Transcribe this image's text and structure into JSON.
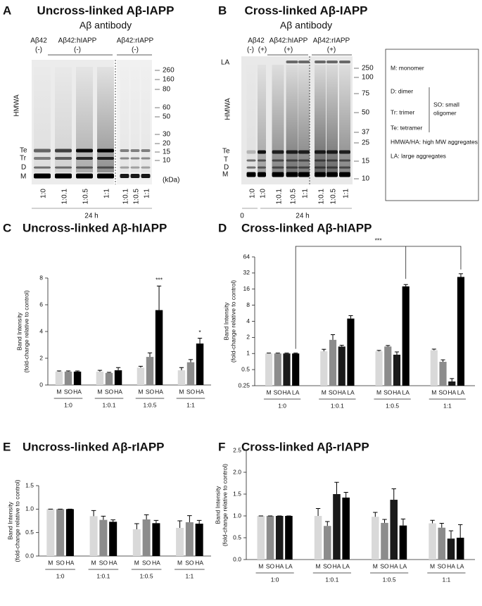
{
  "panel_a": {
    "letter": "A",
    "title": "Uncross-linked Aβ-IAPP",
    "subtitle": "Aβ antibody",
    "group_names": [
      "Aβ42",
      "Aβ42:hIAPP",
      "Aβ42:rIAPP"
    ],
    "treatments": [
      "(-)",
      "(-)",
      "(-)"
    ],
    "band_labels": [
      "HMWA",
      "Te",
      "Tr",
      "D",
      "M"
    ],
    "markers": [
      260,
      160,
      80,
      60,
      50,
      30,
      20,
      15,
      10
    ],
    "marker_unit": "(kDa)",
    "lanes": [
      "1:0",
      "1:0.1",
      "1:0.5",
      "1:1",
      "1:0.1",
      "1:0.5",
      "1:1"
    ],
    "times": [
      "24 h"
    ]
  },
  "panel_b": {
    "letter": "B",
    "title": "Cross-linked Aβ-IAPP",
    "subtitle": "Aβ antibody",
    "group_names": [
      "Aβ42",
      "Aβ42:hIAPP",
      "Aβ42:rIAPP"
    ],
    "treatments": [
      "(-)",
      "(+)",
      "(+)",
      "(+)"
    ],
    "band_labels": [
      "LA",
      "HMWA",
      "Te",
      "T",
      "D",
      "M"
    ],
    "markers": [
      250,
      100,
      75,
      50,
      37,
      25,
      15,
      10
    ],
    "lanes": [
      "1:0",
      "1:0",
      "1:0.1",
      "1:0.5",
      "1:1",
      "1:0.1",
      "1:0.5",
      "1:1"
    ],
    "times": [
      "0",
      "24 h"
    ]
  },
  "legend_box": {
    "items": [
      "M: monomer",
      "D: dimer",
      "Tr: trimer",
      "Te: tetramer",
      "HMWA/HA: high MW aggregates",
      "LA: large aggregates"
    ],
    "bracket_label": [
      "SO: small",
      "oligomer"
    ]
  },
  "chart_data": [
    {
      "type": "bar",
      "letter": "C",
      "title": "Uncross-linked Aβ-hIAPP",
      "ylabel": [
        "Band Intensity",
        "(fold-change relative to control)"
      ],
      "categories": [
        "1:0",
        "1:0.1",
        "1:0.5",
        "1:1"
      ],
      "series": [
        {
          "name": "M",
          "color": "#d9d9d9",
          "values": [
            1,
            1.0,
            1.3,
            1.1
          ],
          "errors": [
            0.05,
            0.1,
            0.1,
            0.2
          ]
        },
        {
          "name": "SO",
          "color": "#8c8c8c",
          "values": [
            1,
            0.9,
            2.1,
            1.7
          ],
          "errors": [
            0.05,
            0.05,
            0.3,
            0.2
          ]
        },
        {
          "name": "HA",
          "color": "#000000",
          "values": [
            1,
            1.1,
            5.6,
            3.1
          ],
          "errors": [
            0.05,
            0.2,
            1.8,
            0.4
          ]
        }
      ],
      "ylim": [
        0,
        8
      ],
      "yticks": [
        0,
        2,
        4,
        6,
        8
      ],
      "annotations": [
        "***",
        "*"
      ]
    },
    {
      "type": "bar",
      "letter": "D",
      "title": "Cross-linked Aβ-hIAPP",
      "ylabel": [
        "Band Intensity",
        "(fold-change relative to control)"
      ],
      "categories": [
        "1:0",
        "1:0.1",
        "1:0.5",
        "1:1"
      ],
      "series": [
        {
          "name": "M",
          "color": "#d9d9d9",
          "values": [
            1,
            1.1,
            1.1,
            1.15
          ],
          "errors": [
            0.02,
            0.1,
            0.04,
            0.06
          ]
        },
        {
          "name": "SO",
          "color": "#8c8c8c",
          "values": [
            1,
            1.8,
            1.35,
            0.7
          ],
          "errors": [
            0.02,
            0.45,
            0.06,
            0.06
          ]
        },
        {
          "name": "HA",
          "color": "#1a1a1a",
          "values": [
            1,
            1.35,
            0.95,
            0.3
          ],
          "errors": [
            0.02,
            0.08,
            0.12,
            0.04
          ]
        },
        {
          "name": "LA",
          "color": "#000000",
          "values": [
            1,
            4.5,
            18,
            27
          ],
          "errors": [
            0.02,
            0.6,
            1.5,
            4
          ]
        }
      ],
      "ylim": [
        0.25,
        64
      ],
      "yticks": [
        0.25,
        0.5,
        1,
        2,
        4,
        8,
        16,
        32,
        64
      ],
      "log_base": 2,
      "annotations": [
        "***"
      ]
    },
    {
      "type": "bar",
      "letter": "E",
      "title": "Uncross-linked Aβ-rIAPP",
      "ylabel": [
        "Band Intensity",
        "(fold-change relative to control)"
      ],
      "categories": [
        "1:0",
        "1:0.1",
        "1:0.5",
        "1:1"
      ],
      "series": [
        {
          "name": "M",
          "color": "#d9d9d9",
          "values": [
            1,
            0.85,
            0.57,
            0.6
          ],
          "errors": [
            0,
            0.12,
            0.12,
            0.15
          ]
        },
        {
          "name": "SO",
          "color": "#8c8c8c",
          "values": [
            1,
            0.77,
            0.78,
            0.72
          ],
          "errors": [
            0,
            0.08,
            0.1,
            0.14
          ]
        },
        {
          "name": "HA",
          "color": "#000000",
          "values": [
            1,
            0.73,
            0.7,
            0.69
          ],
          "errors": [
            0,
            0.04,
            0.06,
            0.07
          ]
        }
      ],
      "ylim": [
        0,
        1.5
      ],
      "yticks": [
        {
          "value": 0,
          "label": "0.0"
        },
        0.5,
        {
          "value": 1,
          "label": "1.0"
        },
        1.5
      ]
    },
    {
      "type": "bar",
      "letter": "F",
      "title": "Cross-linked Aβ-rIAPP",
      "ylabel": [
        "Band Intensity",
        "(fold-change relative to control)"
      ],
      "categories": [
        "1:0",
        "1:0.1",
        "1:0.5",
        "1:1"
      ],
      "series": [
        {
          "name": "M",
          "color": "#d9d9d9",
          "values": [
            1,
            1.0,
            0.98,
            0.83
          ],
          "errors": [
            0,
            0.17,
            0.1,
            0.07
          ]
        },
        {
          "name": "SO",
          "color": "#8c8c8c",
          "values": [
            1,
            0.77,
            0.84,
            0.73
          ],
          "errors": [
            0,
            0.1,
            0.08,
            0.1
          ]
        },
        {
          "name": "HA",
          "color": "#1a1a1a",
          "values": [
            1,
            1.5,
            1.37,
            0.48
          ],
          "errors": [
            0,
            0.27,
            0.25,
            0.18
          ]
        },
        {
          "name": "LA",
          "color": "#000000",
          "values": [
            1,
            1.42,
            0.78,
            0.5
          ],
          "errors": [
            0,
            0.12,
            0.15,
            0.3
          ]
        }
      ],
      "ylim": [
        0,
        2.5
      ],
      "yticks": [
        {
          "value": 0,
          "label": "0.0"
        },
        0.5,
        {
          "value": 1,
          "label": "1.0"
        },
        1.5,
        {
          "value": 2,
          "label": "2.0"
        },
        2.5
      ]
    }
  ]
}
